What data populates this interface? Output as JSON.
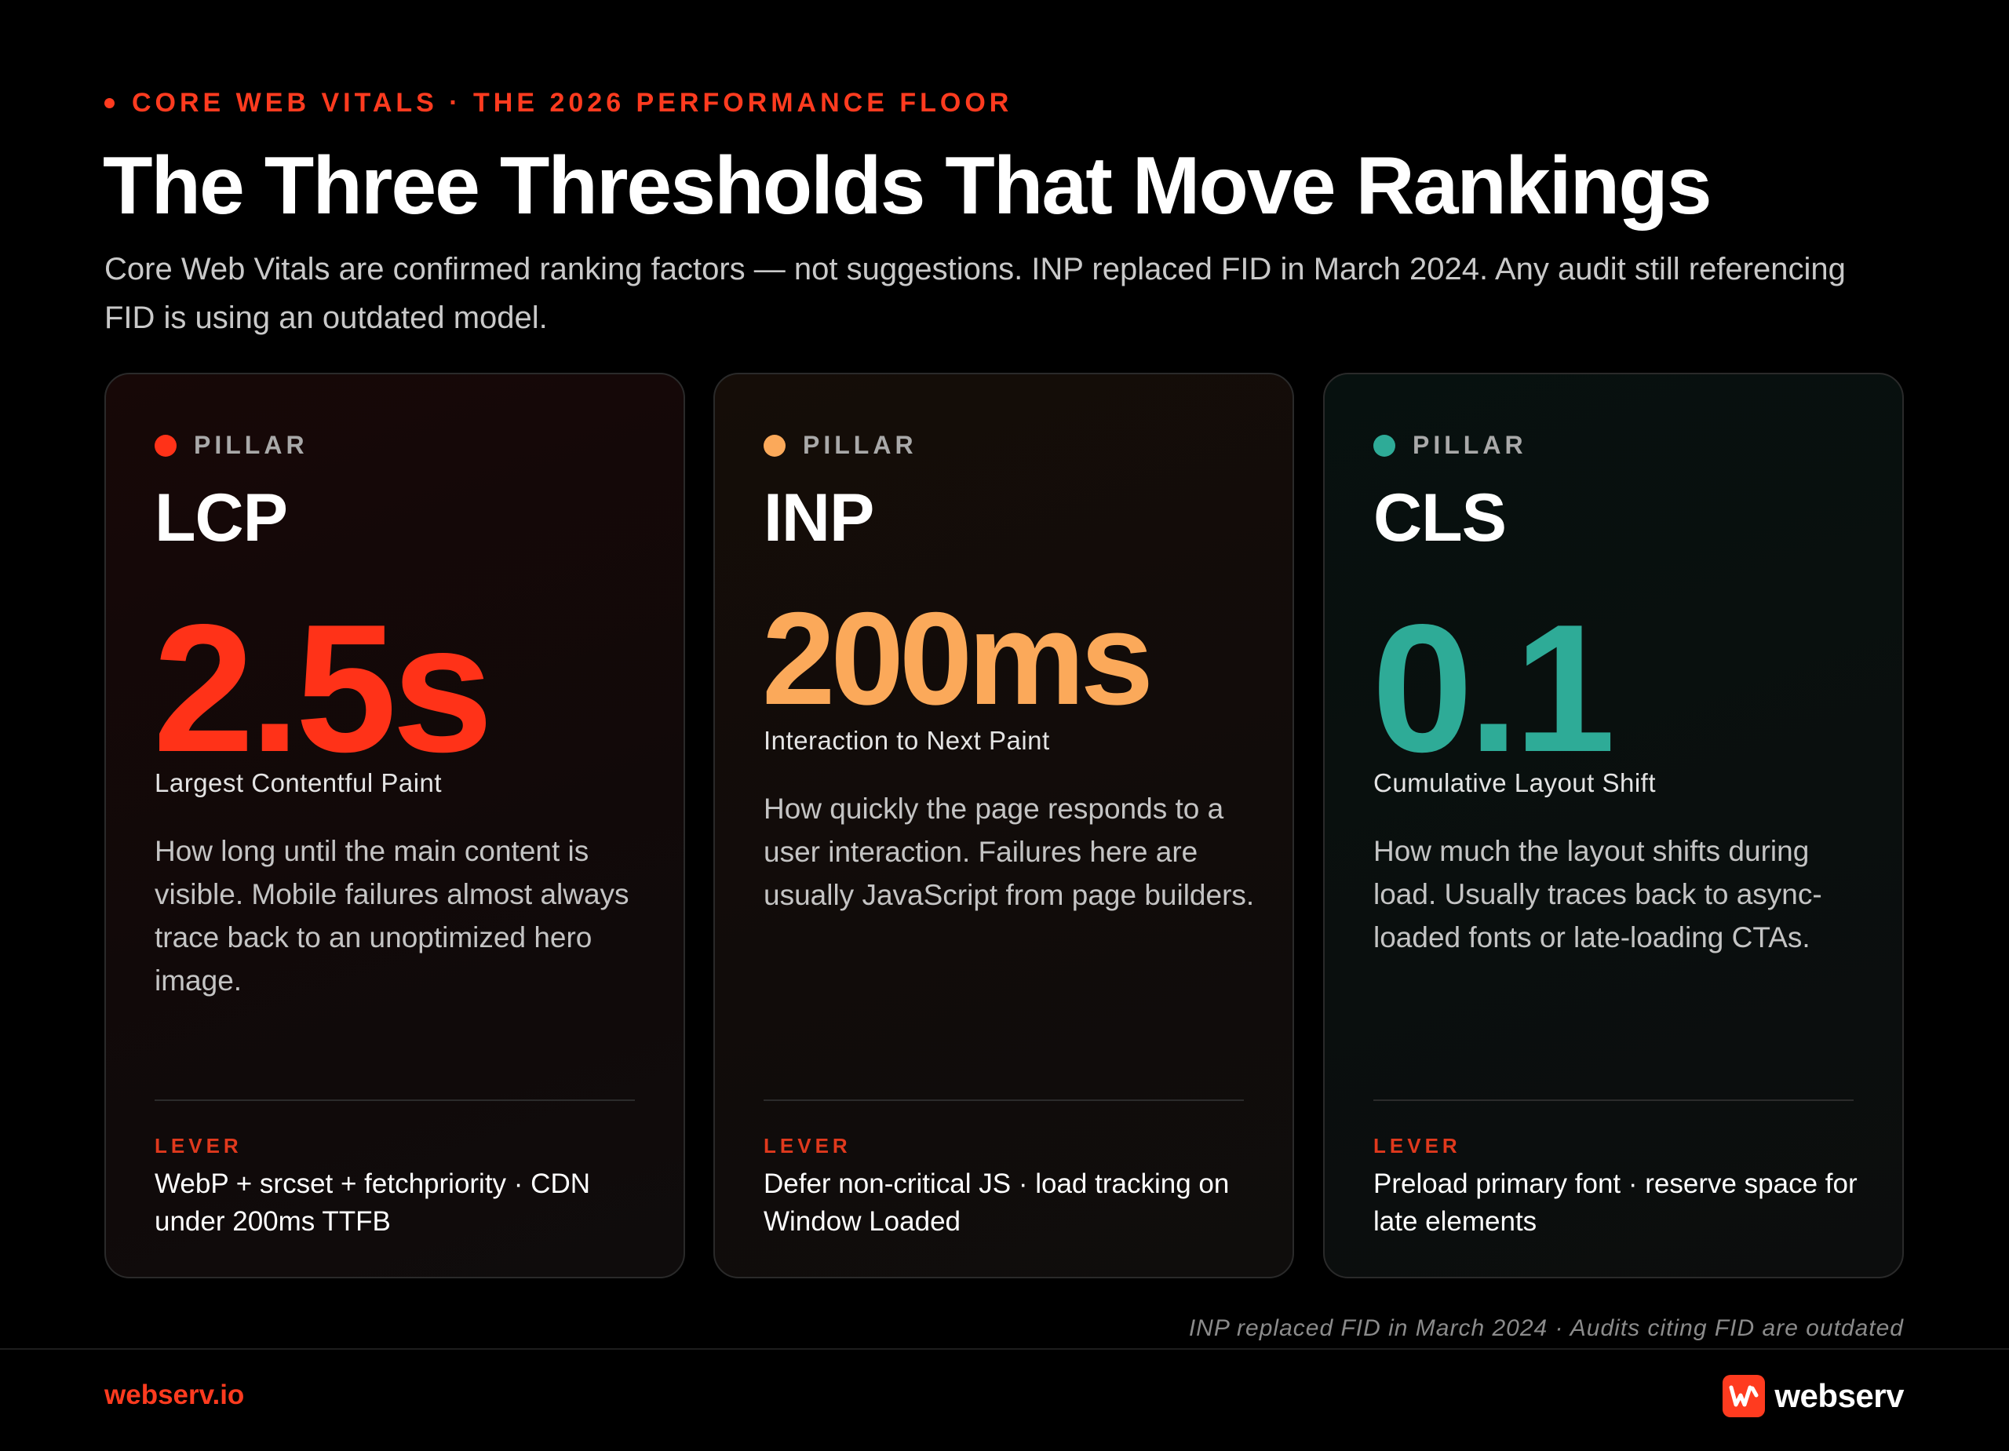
{
  "header": {
    "kicker": "CORE WEB VITALS · THE 2026 PERFORMANCE FLOOR",
    "title": "The Three Thresholds That Move Rankings",
    "subtitle": "Core Web Vitals are confirmed ranking factors — not suggestions. INP replaced FID in March 2024. Any audit still referencing FID is using an outdated model."
  },
  "cards": [
    {
      "pillar_label": "PILLAR",
      "metric": "LCP",
      "value": "2.5s",
      "full_name": "Largest Contentful Paint",
      "description": "How long until the main content is visible. Mobile failures almost always trace back to an unoptimized hero image.",
      "lever_label": "LEVER",
      "lever": "WebP + srcset + fetchpriority · CDN under 200ms TTFB",
      "color": "#ff3218"
    },
    {
      "pillar_label": "PILLAR",
      "metric": "INP",
      "value": "200ms",
      "full_name": "Interaction to Next Paint",
      "description": "How quickly the page responds to a user interaction. Failures here are usually JavaScript from page builders.",
      "lever_label": "LEVER",
      "lever": "Defer non-critical JS · load tracking on Window Loaded",
      "color": "#fba95a"
    },
    {
      "pillar_label": "PILLAR",
      "metric": "CLS",
      "value": "0.1",
      "full_name": "Cumulative Layout Shift",
      "description": "How much the layout shifts during load. Usually traces back to async-loaded fonts or late-loading CTAs.",
      "lever_label": "LEVER",
      "lever": "Preload primary font · reserve space for late elements",
      "color": "#2eab97"
    }
  ],
  "footnote": "INP replaced FID in March 2024 · Audits citing FID are outdated",
  "footer": {
    "domain": "webserv.io",
    "brand": "webserv",
    "brand_icon": "webserv-logo-icon",
    "accent_color": "#ff3b1f"
  }
}
